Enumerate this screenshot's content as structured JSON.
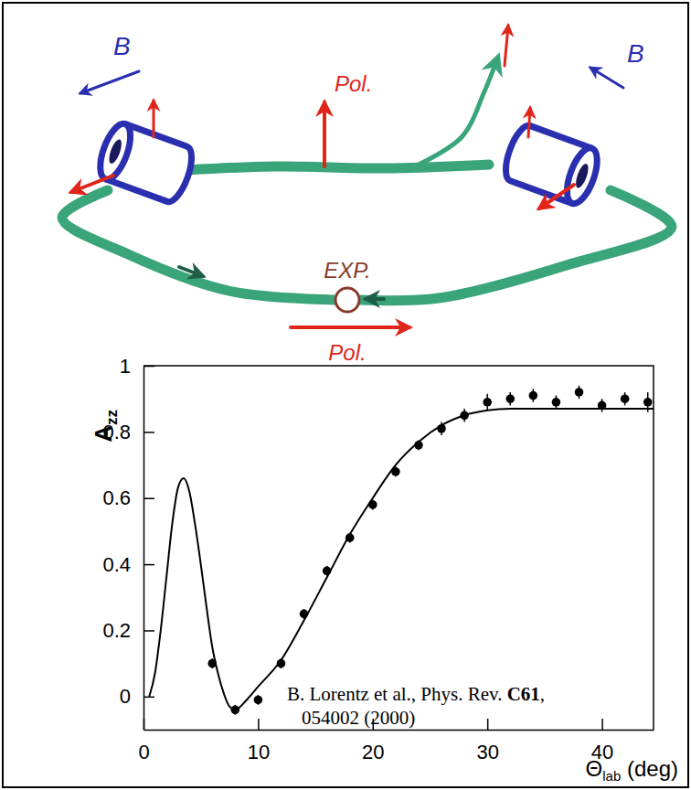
{
  "chart_data": {
    "type": "scatter",
    "ylabel": [
      "A",
      "zz"
    ],
    "xlabel": [
      "Θ",
      "lab",
      " (deg)"
    ],
    "annotation": {
      "line1": [
        "B. Lorentz et al., Phys. Rev. ",
        "C61",
        ","
      ],
      "line2": "054002 (2000)"
    },
    "xlim": [
      0,
      44.5
    ],
    "ylim": [
      -0.1,
      1
    ],
    "xticks": [
      0,
      10,
      20,
      30,
      40
    ],
    "yticks": [
      0,
      0.2,
      0.4,
      0.6,
      0.8,
      1
    ],
    "series": [
      {
        "type": "line",
        "color": "#000000",
        "line_style": "solid",
        "x": [
          0.5,
          1,
          1.5,
          2,
          2.5,
          3,
          3.5,
          4,
          4.5,
          5,
          5.5,
          6,
          6.5,
          7,
          7.5,
          8,
          9,
          10,
          12,
          14,
          16,
          18,
          20,
          22,
          24,
          26,
          28,
          30,
          32,
          35,
          40,
          44.5
        ],
        "values": [
          0.0,
          0.07,
          0.2,
          0.36,
          0.52,
          0.63,
          0.66,
          0.62,
          0.52,
          0.4,
          0.27,
          0.15,
          0.07,
          0.01,
          -0.03,
          -0.04,
          -0.01,
          0.03,
          0.11,
          0.23,
          0.36,
          0.49,
          0.6,
          0.7,
          0.77,
          0.82,
          0.85,
          0.865,
          0.87,
          0.87,
          0.87,
          0.87
        ]
      },
      {
        "type": "scatter",
        "color": "#000000",
        "marker": "circle",
        "x": [
          6,
          8,
          10,
          12,
          14,
          16,
          18,
          20,
          22,
          24,
          26,
          28,
          30,
          32,
          34,
          36,
          38,
          40,
          42,
          44
        ],
        "values": [
          0.1,
          -0.04,
          -0.01,
          0.1,
          0.25,
          0.38,
          0.48,
          0.58,
          0.68,
          0.76,
          0.81,
          0.85,
          0.89,
          0.9,
          0.91,
          0.89,
          0.92,
          0.88,
          0.9,
          0.89
        ],
        "errors": [
          0.015,
          0.015,
          0.015,
          0.015,
          0.015,
          0.015,
          0.015,
          0.015,
          0.015,
          0.015,
          0.02,
          0.02,
          0.025,
          0.02,
          0.02,
          0.02,
          0.02,
          0.02,
          0.02,
          0.03
        ]
      }
    ]
  },
  "diagram": {
    "b_left": "B",
    "b_right": "B",
    "pol_top": "Pol.",
    "pol_bottom": "Pol.",
    "exp": "EXP."
  }
}
